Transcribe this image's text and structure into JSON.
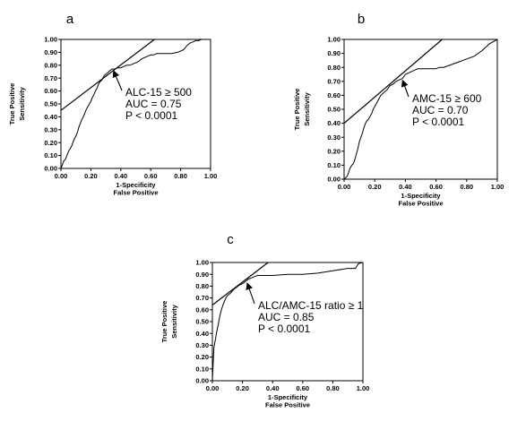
{
  "chart_data": [
    {
      "type": "line",
      "panel_label": "a",
      "xlabel_lines": [
        "1-Specificity",
        "False Positive"
      ],
      "ylabel_lines": [
        "True Positive",
        "Sensitivity"
      ],
      "xlim": [
        0,
        1
      ],
      "ylim": [
        0,
        1
      ],
      "x_ticks": [
        "0.00",
        "0.20",
        "0.40",
        "0.60",
        "0.80",
        "1.00"
      ],
      "y_ticks": [
        "0.00",
        "0.10",
        "0.20",
        "0.30",
        "0.40",
        "0.50",
        "0.60",
        "0.70",
        "0.80",
        "0.90",
        "1.00"
      ],
      "annotation_lines": [
        "ALC-15 ≥ 500",
        "AUC = 0.75",
        "P < 0.0001"
      ],
      "arrow_target": [
        0.34,
        0.77
      ],
      "tangent_line": [
        [
          0,
          0.45
        ],
        [
          0.625,
          1.0
        ]
      ],
      "series": [
        {
          "x": [
            0,
            0.01,
            0.02,
            0.03,
            0.04,
            0.05,
            0.06,
            0.07,
            0.08,
            0.09,
            0.1,
            0.11,
            0.12,
            0.13,
            0.14,
            0.15,
            0.16,
            0.17,
            0.18,
            0.19,
            0.2,
            0.21,
            0.22,
            0.23,
            0.24,
            0.25,
            0.26,
            0.27,
            0.28,
            0.29,
            0.3,
            0.31,
            0.32,
            0.33,
            0.34,
            0.36,
            0.38,
            0.4,
            0.42,
            0.44,
            0.46,
            0.48,
            0.5,
            0.52,
            0.54,
            0.56,
            0.58,
            0.6,
            0.62,
            0.64,
            0.66,
            0.7,
            0.74,
            0.78,
            0.8,
            0.82,
            0.84,
            0.86,
            0.88,
            0.9,
            0.92,
            0.94,
            0.96,
            0.98,
            1.0
          ],
          "y": [
            0,
            0.03,
            0.06,
            0.07,
            0.1,
            0.13,
            0.15,
            0.17,
            0.2,
            0.23,
            0.25,
            0.28,
            0.32,
            0.35,
            0.38,
            0.4,
            0.43,
            0.46,
            0.48,
            0.5,
            0.52,
            0.55,
            0.57,
            0.6,
            0.62,
            0.65,
            0.67,
            0.68,
            0.7,
            0.72,
            0.73,
            0.74,
            0.75,
            0.76,
            0.77,
            0.77,
            0.78,
            0.78,
            0.79,
            0.8,
            0.8,
            0.81,
            0.82,
            0.83,
            0.85,
            0.86,
            0.87,
            0.88,
            0.88,
            0.89,
            0.89,
            0.89,
            0.89,
            0.9,
            0.91,
            0.92,
            0.95,
            0.97,
            0.98,
            0.99,
            0.99,
            1.0,
            1.0,
            1.0,
            1.0
          ]
        }
      ]
    },
    {
      "type": "line",
      "panel_label": "b",
      "xlabel_lines": [
        "1-Specificity",
        "False Positive"
      ],
      "ylabel_lines": [
        "True Positive",
        "Sensitivity"
      ],
      "xlim": [
        0,
        1
      ],
      "ylim": [
        0,
        1
      ],
      "x_ticks": [
        "0.00",
        "0.20",
        "0.40",
        "0.60",
        "0.80",
        "1.00"
      ],
      "y_ticks": [
        "0.00",
        "0.10",
        "0.20",
        "0.30",
        "0.40",
        "0.50",
        "0.60",
        "0.70",
        "0.80",
        "0.90",
        "1.00"
      ],
      "annotation_lines": [
        "AMC-15 ≥ 600",
        "AUC = 0.70",
        "P < 0.0001"
      ],
      "arrow_target": [
        0.37,
        0.72
      ],
      "tangent_line": [
        [
          0,
          0.4
        ],
        [
          0.64,
          1.0
        ]
      ],
      "series": [
        {
          "x": [
            0,
            0.02,
            0.03,
            0.04,
            0.05,
            0.06,
            0.07,
            0.08,
            0.09,
            0.1,
            0.11,
            0.12,
            0.13,
            0.14,
            0.15,
            0.16,
            0.17,
            0.18,
            0.19,
            0.2,
            0.22,
            0.24,
            0.26,
            0.28,
            0.3,
            0.32,
            0.34,
            0.36,
            0.38,
            0.4,
            0.42,
            0.44,
            0.46,
            0.48,
            0.5,
            0.55,
            0.6,
            0.62,
            0.65,
            0.7,
            0.75,
            0.8,
            0.85,
            0.9,
            0.95,
            1.0
          ],
          "y": [
            0,
            0.02,
            0.05,
            0.08,
            0.1,
            0.11,
            0.14,
            0.18,
            0.22,
            0.27,
            0.3,
            0.33,
            0.37,
            0.4,
            0.42,
            0.43,
            0.45,
            0.47,
            0.5,
            0.52,
            0.56,
            0.6,
            0.62,
            0.64,
            0.67,
            0.68,
            0.7,
            0.71,
            0.72,
            0.75,
            0.76,
            0.77,
            0.78,
            0.79,
            0.79,
            0.79,
            0.79,
            0.8,
            0.8,
            0.82,
            0.84,
            0.86,
            0.88,
            0.92,
            0.97,
            1.0
          ]
        }
      ]
    },
    {
      "type": "line",
      "panel_label": "c",
      "xlabel_lines": [
        "1-Specificity",
        "False Positive"
      ],
      "ylabel_lines": [
        "True Positive",
        "Sensitivity"
      ],
      "xlim": [
        0,
        1
      ],
      "ylim": [
        0,
        1
      ],
      "x_ticks": [
        "0.00",
        "0.20",
        "0.40",
        "0.60",
        "0.80",
        "1.00"
      ],
      "y_ticks": [
        "0.00",
        "0.10",
        "0.20",
        "0.30",
        "0.40",
        "0.50",
        "0.60",
        "0.70",
        "0.80",
        "0.90",
        "1.00"
      ],
      "annotation_lines": [
        "ALC/AMC-15 ratio ≥ 1",
        "AUC = 0.85",
        "P < 0.0001"
      ],
      "arrow_target": [
        0.22,
        0.84
      ],
      "tangent_line": [
        [
          0,
          0.64
        ],
        [
          0.37,
          1.0
        ]
      ],
      "series": [
        {
          "x": [
            0,
            0.01,
            0.02,
            0.03,
            0.04,
            0.05,
            0.06,
            0.07,
            0.08,
            0.09,
            0.1,
            0.12,
            0.14,
            0.16,
            0.18,
            0.2,
            0.22,
            0.24,
            0.26,
            0.28,
            0.3,
            0.34,
            0.4,
            0.5,
            0.6,
            0.7,
            0.8,
            0.9,
            0.95,
            0.96,
            0.97,
            1.0
          ],
          "y": [
            0,
            0.28,
            0.35,
            0.42,
            0.48,
            0.55,
            0.6,
            0.64,
            0.67,
            0.7,
            0.72,
            0.74,
            0.77,
            0.79,
            0.81,
            0.82,
            0.84,
            0.86,
            0.87,
            0.88,
            0.89,
            0.89,
            0.89,
            0.9,
            0.9,
            0.91,
            0.93,
            0.95,
            0.95,
            0.97,
            0.99,
            1.0
          ]
        }
      ]
    }
  ]
}
